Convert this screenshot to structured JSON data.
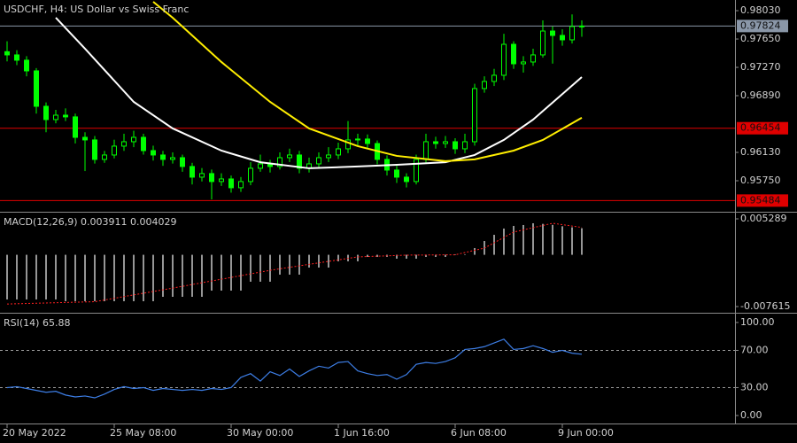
{
  "chart_data": [
    {
      "type": "candlestick",
      "title": "USDCHF, H4:  US Dollar vs Swiss Franc",
      "xlim": [
        -0.727,
        74.727
      ],
      "xticks": [
        {
          "value": 0,
          "label": "20 May 2022"
        },
        {
          "value": 11,
          "label": "25 May 08:00"
        },
        {
          "value": 23,
          "label": "30 May 00:00"
        },
        {
          "value": 34,
          "label": "1 Jun 16:00"
        },
        {
          "value": 46,
          "label": "6 Jun 08:00"
        },
        {
          "value": 57,
          "label": "9 Jun 00:00"
        }
      ],
      "ylim": [
        0.95346,
        0.98173
      ],
      "yticks": [
        {
          "value": 0.9803,
          "label": "0.98030"
        },
        {
          "value": 0.9765,
          "label": "0.97650"
        },
        {
          "value": 0.9727,
          "label": "0.97270"
        },
        {
          "value": 0.9689,
          "label": "0.96890"
        },
        {
          "value": 0.9613,
          "label": "0.96130"
        },
        {
          "value": 0.9575,
          "label": "0.95750"
        }
      ],
      "up_color": "#000000",
      "down_color": "#00ff00",
      "wick_color": "#00ff00",
      "open": [
        0.9748,
        0.97437,
        0.97366,
        0.97223,
        0.96748,
        0.9657,
        0.96629,
        0.96606,
        0.96332,
        0.96297,
        0.96036,
        0.96095,
        0.96214,
        0.96273,
        0.96332,
        0.96154,
        0.96095,
        0.96036,
        0.96059,
        0.95941,
        0.95798,
        0.95846,
        0.95739,
        0.95774,
        0.95656,
        0.95739,
        0.95917,
        0.95976,
        0.95941,
        0.96059,
        0.96095,
        0.95917,
        0.95976,
        0.96059,
        0.96095,
        0.96178,
        0.96297,
        0.96309,
        0.96249,
        0.96036,
        0.95893,
        0.95798,
        0.95739,
        0.96036,
        0.96273,
        0.96249,
        0.96273,
        0.96178,
        0.96273,
        0.96986,
        0.97081,
        0.97164,
        0.97579,
        0.97318,
        0.97342,
        0.97437,
        0.97757,
        0.97698,
        0.97639,
        0.97817
      ],
      "high": [
        0.9762,
        0.975,
        0.9742,
        0.9726,
        0.968,
        0.967,
        0.9672,
        0.9665,
        0.964,
        0.9635,
        0.9615,
        0.963,
        0.9638,
        0.9642,
        0.9638,
        0.9622,
        0.9615,
        0.9613,
        0.961,
        0.9599,
        0.9592,
        0.959,
        0.9585,
        0.9582,
        0.958,
        0.96,
        0.961,
        0.9603,
        0.9613,
        0.9618,
        0.9615,
        0.9606,
        0.9613,
        0.962,
        0.9626,
        0.9655,
        0.9638,
        0.9637,
        0.9629,
        0.9609,
        0.9595,
        0.9585,
        0.961,
        0.9638,
        0.9634,
        0.9635,
        0.9632,
        0.9638,
        0.9705,
        0.9715,
        0.9725,
        0.9772,
        0.9762,
        0.9742,
        0.9752,
        0.979,
        0.9782,
        0.9778,
        0.9798,
        0.979
      ],
      "low": [
        0.9735,
        0.973,
        0.9715,
        0.9665,
        0.964,
        0.9652,
        0.9655,
        0.9625,
        0.9588,
        0.9598,
        0.9599,
        0.9605,
        0.9615,
        0.962,
        0.961,
        0.9602,
        0.9595,
        0.9598,
        0.9587,
        0.957,
        0.9574,
        0.955,
        0.9568,
        0.9559,
        0.956,
        0.9569,
        0.9587,
        0.9586,
        0.959,
        0.96,
        0.9585,
        0.9586,
        0.9592,
        0.96,
        0.9604,
        0.9612,
        0.9622,
        0.9618,
        0.9597,
        0.9582,
        0.9572,
        0.9566,
        0.957,
        0.9599,
        0.9618,
        0.9619,
        0.9611,
        0.9612,
        0.9622,
        0.9693,
        0.9702,
        0.971,
        0.9725,
        0.972,
        0.9729,
        0.974,
        0.9732,
        0.9756,
        0.9759,
        0.9768
      ],
      "close": [
        0.97437,
        0.97366,
        0.97223,
        0.96748,
        0.9657,
        0.96629,
        0.96606,
        0.96332,
        0.96297,
        0.96036,
        0.96095,
        0.96214,
        0.96273,
        0.96332,
        0.96154,
        0.96095,
        0.96036,
        0.96059,
        0.95941,
        0.95798,
        0.95846,
        0.95739,
        0.95774,
        0.95656,
        0.95739,
        0.95917,
        0.95976,
        0.95941,
        0.96059,
        0.96095,
        0.95917,
        0.95976,
        0.96059,
        0.96095,
        0.96178,
        0.96297,
        0.96309,
        0.96249,
        0.96036,
        0.95893,
        0.95798,
        0.95739,
        0.96036,
        0.96273,
        0.96249,
        0.96273,
        0.96178,
        0.96273,
        0.96986,
        0.97081,
        0.97164,
        0.97579,
        0.97318,
        0.97342,
        0.97437,
        0.97757,
        0.97698,
        0.97639,
        0.97817,
        0.97824
      ],
      "overlays": [
        {
          "color": "#ffffff",
          "x": [
            5,
            8,
            13,
            17,
            22,
            26,
            31,
            36,
            40,
            45,
            48,
            51,
            54,
            59
          ],
          "values": [
            0.97936,
            0.9752,
            0.96807,
            0.96451,
            0.96154,
            0.95998,
            0.95917,
            0.95941,
            0.95964,
            0.95998,
            0.96095,
            0.96297,
            0.9657,
            0.9714
          ]
        },
        {
          "color": "#ffee00",
          "x": [
            15,
            17,
            22,
            27,
            31,
            36,
            40,
            45,
            48,
            52,
            55,
            59
          ],
          "values": [
            0.98149,
            0.97936,
            0.97342,
            0.96807,
            0.96451,
            0.96214,
            0.96083,
            0.96012,
            0.96036,
            0.96154,
            0.96297,
            0.96594
          ]
        }
      ],
      "hlines": [
        {
          "value": 0.97824,
          "color": "#8a97a8",
          "text_color": "#101010"
        },
        {
          "value": 0.96454,
          "color": "#e00000",
          "text_color": "#101010"
        },
        {
          "value": 0.95484,
          "color": "#e00000",
          "text_color": "#101010"
        }
      ]
    },
    {
      "type": "macd",
      "title": "MACD(12,26,9) 0.003911 0.004029",
      "ylim": [
        -0.008397,
        0.006201
      ],
      "yticks": [
        0.005289,
        -0.007615
      ],
      "series": [
        {
          "style": "histogram",
          "color": "#c8c8c8",
          "values": [
            -0.00657,
            -0.00657,
            -0.00657,
            -0.00657,
            -0.00657,
            -0.00657,
            -0.00683,
            -0.00683,
            -0.00683,
            -0.00683,
            -0.00683,
            -0.00683,
            -0.00683,
            -0.00683,
            -0.00683,
            -0.00683,
            -0.00618,
            -0.00618,
            -0.00618,
            -0.00618,
            -0.00618,
            -0.00527,
            -0.00527,
            -0.00527,
            -0.00527,
            -0.00396,
            -0.00396,
            -0.00396,
            -0.00292,
            -0.00292,
            -0.00292,
            -0.00188,
            -0.00188,
            -0.00188,
            -0.00096,
            -0.00096,
            -0.00096,
            -0.00031,
            -0.00031,
            -0.00031,
            -0.00057,
            -0.00057,
            -0.00057,
            -0.00031,
            -0.00031,
            -0.00031,
            8e-05,
            8e-05,
            0.00099,
            0.00203,
            0.00294,
            0.00386,
            0.00425,
            0.00438,
            0.00464,
            0.00455,
            0.0044,
            0.0042,
            0.00405,
            0.003911
          ]
        },
        {
          "style": "dotted",
          "color": "#ff2020",
          "x": [
            0,
            9,
            17,
            27,
            36,
            41,
            46,
            49,
            52,
            56,
            59
          ],
          "values": [
            -0.00724,
            -0.0069,
            -0.0049,
            -0.00228,
            -0.00031,
            -5e-05,
            0.0,
            0.00099,
            0.00334,
            0.00464,
            0.004029
          ]
        }
      ]
    },
    {
      "type": "line",
      "title": "RSI(14) 65.88",
      "ylim": [
        -8.6,
        109.5
      ],
      "yticks": [
        {
          "value": 100,
          "label": "100.00"
        },
        {
          "value": 70,
          "label": "70.00"
        },
        {
          "value": 30,
          "label": "30.00"
        },
        {
          "value": 0,
          "label": "0.00"
        }
      ],
      "levels": [
        70,
        30
      ],
      "series": [
        {
          "color": "#3d7ee6",
          "values": [
            30,
            31,
            29,
            27,
            25,
            26,
            22,
            20,
            21,
            19,
            23,
            28,
            31,
            29,
            30,
            27,
            29,
            28,
            27,
            28,
            27,
            29,
            28,
            30,
            41,
            45,
            37,
            47,
            43,
            50,
            42,
            48,
            53,
            51,
            57,
            58,
            48,
            45,
            43,
            44,
            39,
            44,
            55,
            57,
            56,
            58,
            62,
            71,
            72,
            74,
            78,
            82,
            71,
            72,
            75,
            72,
            68,
            70,
            67,
            65.88
          ]
        }
      ]
    }
  ]
}
